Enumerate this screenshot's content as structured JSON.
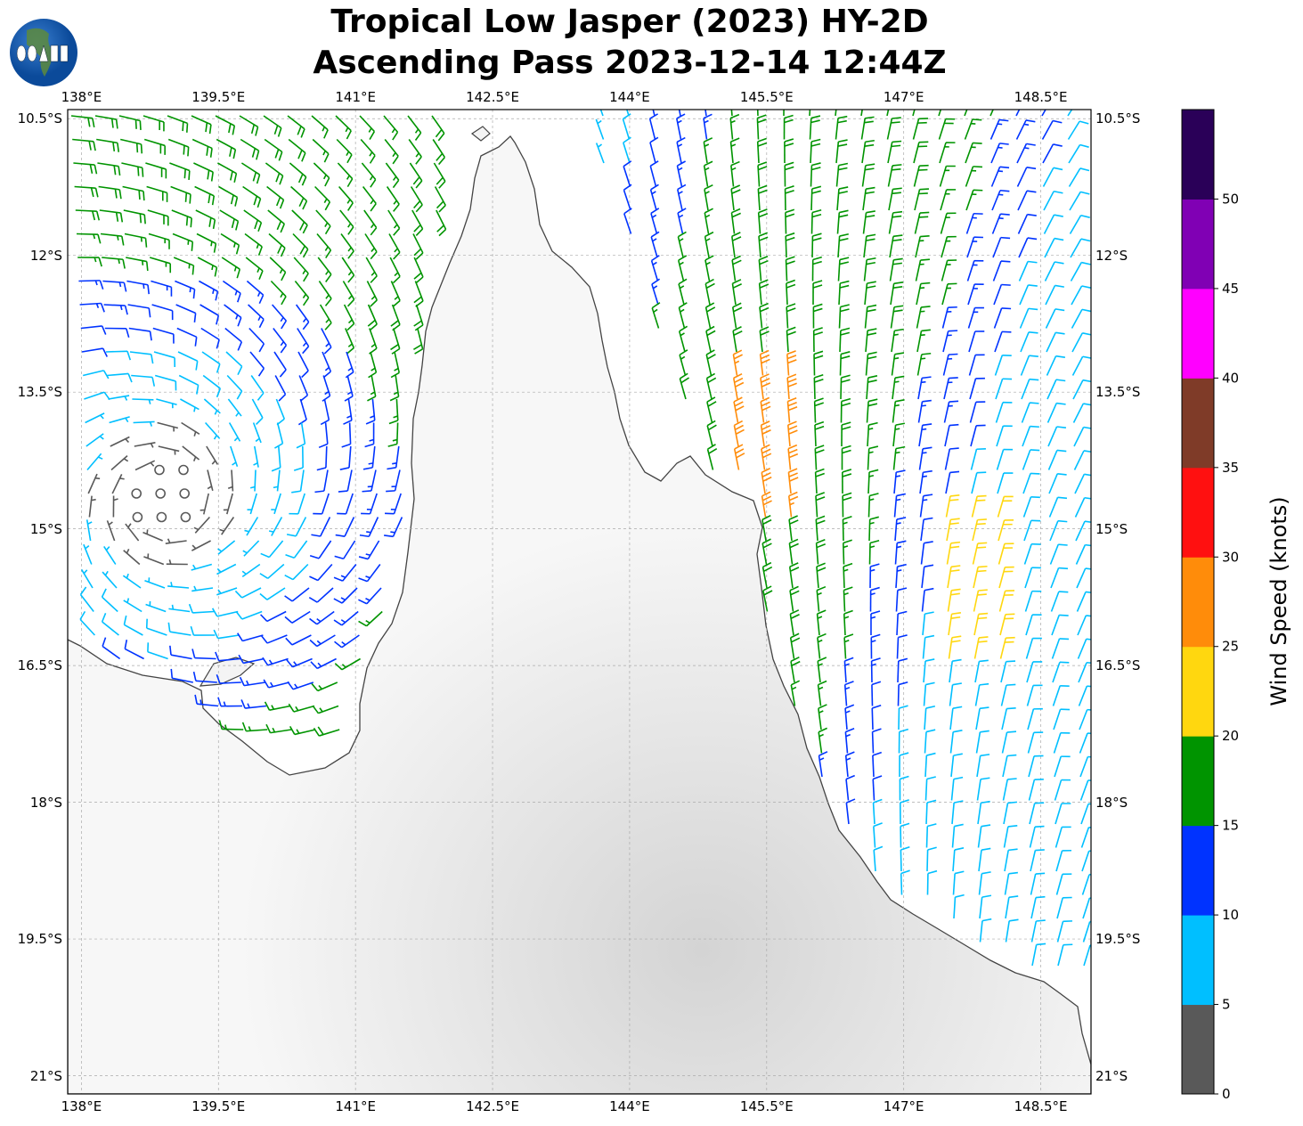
{
  "title": {
    "line1": "Tropical Low Jasper (2023) HY-2D",
    "line2": "Ascending Pass 2023-12-14 12:44Z"
  },
  "logo": {
    "text": "COAPS"
  },
  "map": {
    "projection": "PlateCarree",
    "extent": {
      "lon": [
        137.85,
        149.05
      ],
      "lat": [
        -21.2,
        -10.4
      ]
    },
    "lon_ticks": [
      "138°E",
      "139.5°E",
      "141°E",
      "142.5°E",
      "144°E",
      "145.5°E",
      "147°E",
      "148.5°E"
    ],
    "lon_values": [
      138,
      139.5,
      141,
      142.5,
      144,
      145.5,
      147,
      148.5
    ],
    "lat_ticks": [
      "10.5°S",
      "12°S",
      "13.5°S",
      "15°S",
      "16.5°S",
      "18°S",
      "19.5°S",
      "21°S"
    ],
    "lat_values": [
      -10.5,
      -12,
      -13.5,
      -15,
      -16.5,
      -18,
      -19.5,
      -21
    ],
    "grid": true,
    "land_shading": "grayscale topography",
    "ocean_color": "#ffffff"
  },
  "colorbar": {
    "label": "Wind Speed (knots)",
    "tick_labels": [
      "0",
      "5",
      "10",
      "15",
      "20",
      "25",
      "30",
      "35",
      "40",
      "45",
      "50"
    ],
    "bounds": [
      0,
      5,
      10,
      15,
      20,
      25,
      30,
      35,
      40,
      45,
      50,
      55
    ],
    "colors": [
      "#595959",
      "#00bfff",
      "#0033ff",
      "#009400",
      "#ffd70f",
      "#ff8c0a",
      "#ff1010",
      "#7f3b28",
      "#ff00ff",
      "#8000b4",
      "#2a0058"
    ]
  }
}
